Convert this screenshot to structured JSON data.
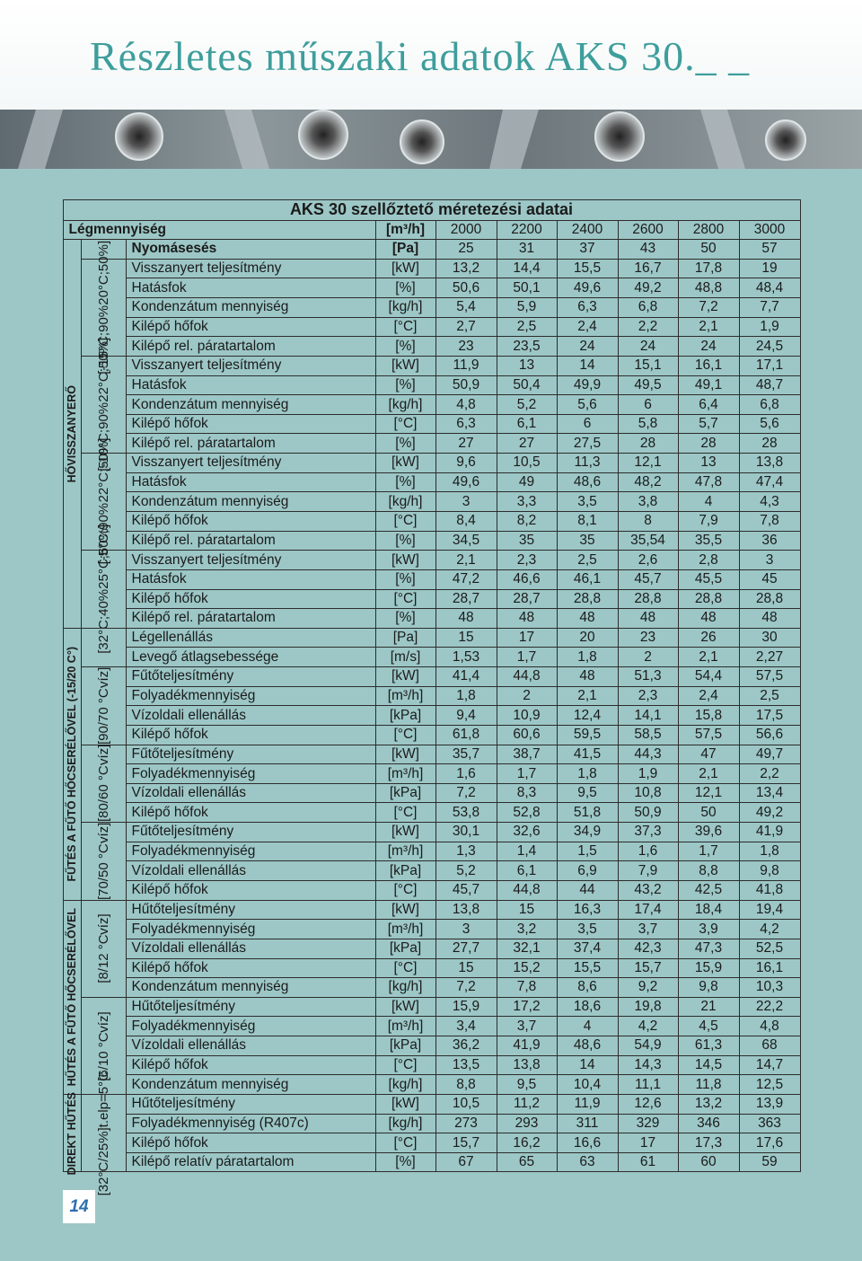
{
  "header": {
    "title": "Részletes műszaki adatok AKS 30._ _",
    "page_number": "14"
  },
  "table": {
    "title": "AKS 30 szellőztető méretezési adatai",
    "header_row": [
      "Légmennyiség",
      "[m³/h]",
      "2000",
      "2200",
      "2400",
      "2600",
      "2800",
      "3000"
    ],
    "groups": [
      {
        "label": "HŐVISSZANYERŐ",
        "subgroups": [
          {
            "bold": true,
            "rows": [
              [
                "Nyomásesés",
                "[Pa]",
                "25",
                "31",
                "37",
                "43",
                "50",
                "57"
              ]
            ]
          },
          {
            "label": [
              "[-15°C;90%",
              "20°C;50%]"
            ],
            "rows": [
              [
                "Visszanyert teljesítmény",
                "[kW]",
                "13,2",
                "14,4",
                "15,5",
                "16,7",
                "17,8",
                "19"
              ],
              [
                "Hatásfok",
                "[%]",
                "50,6",
                "50,1",
                "49,6",
                "49,2",
                "48,8",
                "48,4"
              ],
              [
                "Kondenzátum mennyiség",
                "[kg/h]",
                "5,4",
                "5,9",
                "6,3",
                "6,8",
                "7,2",
                "7,7"
              ],
              [
                "Kilépő hőfok",
                "[°C]",
                "2,7",
                "2,5",
                "2,4",
                "2,2",
                "2,1",
                "1,9"
              ],
              [
                "Kilépő rel. páratartalom",
                "[%]",
                "23",
                "23,5",
                "24",
                "24",
                "24",
                "24,5"
              ]
            ]
          },
          {
            "label": [
              "[-10°C;90%",
              "22°C;50%]"
            ],
            "rows": [
              [
                "Visszanyert teljesítmény",
                "[kW]",
                "11,9",
                "13",
                "14",
                "15,1",
                "16,1",
                "17,1"
              ],
              [
                "Hatásfok",
                "[%]",
                "50,9",
                "50,4",
                "49,9",
                "49,5",
                "49,1",
                "48,7"
              ],
              [
                "Kondenzátum mennyiség",
                "[kg/h]",
                "4,8",
                "5,2",
                "5,6",
                "6",
                "6,4",
                "6,8"
              ],
              [
                "Kilépő hőfok",
                "[°C]",
                "6,3",
                "6,1",
                "6",
                "5,8",
                "5,7",
                "5,6"
              ],
              [
                "Kilépő rel. páratartalom",
                "[%]",
                "27",
                "27",
                "27,5",
                "28",
                "28",
                "28"
              ]
            ]
          },
          {
            "label": [
              "[-5°C;90%",
              "22°C;50%]"
            ],
            "rows": [
              [
                "Visszanyert teljesítmény",
                "[kW]",
                "9,6",
                "10,5",
                "11,3",
                "12,1",
                "13",
                "13,8"
              ],
              [
                "Hatásfok",
                "[%]",
                "49,6",
                "49",
                "48,6",
                "48,2",
                "47,8",
                "47,4"
              ],
              [
                "Kondenzátum mennyiség",
                "[kg/h]",
                "3",
                "3,3",
                "3,5",
                "3,8",
                "4",
                "4,3"
              ],
              [
                "Kilépő hőfok",
                "[°C]",
                "8,4",
                "8,2",
                "8,1",
                "8",
                "7,9",
                "7,8"
              ],
              [
                "Kilépő rel. páratartalom",
                "[%]",
                "34,5",
                "35",
                "35",
                "35,54",
                "35,5",
                "36"
              ]
            ]
          },
          {
            "label": [
              "[32°C;40%",
              "25°C;60%]"
            ],
            "rows": [
              [
                "Visszanyert teljesítmény",
                "[kW]",
                "2,1",
                "2,3",
                "2,5",
                "2,6",
                "2,8",
                "3"
              ],
              [
                "Hatásfok",
                "[%]",
                "47,2",
                "46,6",
                "46,1",
                "45,7",
                "45,5",
                "45"
              ],
              [
                "Kilépő hőfok",
                "[°C]",
                "28,7",
                "28,7",
                "28,8",
                "28,8",
                "28,8",
                "28,8"
              ],
              [
                "Kilépő rel. páratartalom",
                "[%]",
                "48",
                "48",
                "48",
                "48",
                "48",
                "48"
              ]
            ]
          }
        ]
      },
      {
        "label": "FŰTÉS A FŰTŐ HŐCSERÉLŐVEL (-15/20 C°)",
        "subgroups": [
          {
            "rows": [
              [
                "Légellenállás",
                "[Pa]",
                "15",
                "17",
                "20",
                "23",
                "26",
                "30"
              ],
              [
                "Levegő átlagsebessége",
                "[m/s]",
                "1,53",
                "1,7",
                "1,8",
                "2",
                "2,1",
                "2,27"
              ]
            ]
          },
          {
            "label": [
              "[90/70 °C",
              "víz]"
            ],
            "rows": [
              [
                "Fűtőteljesítmény",
                "[kW]",
                "41,4",
                "44,8",
                "48",
                "51,3",
                "54,4",
                "57,5"
              ],
              [
                "Folyadékmennyiség",
                "[m³/h]",
                "1,8",
                "2",
                "2,1",
                "2,3",
                "2,4",
                "2,5"
              ],
              [
                "Vízoldali ellenállás",
                "[kPa]",
                "9,4",
                "10,9",
                "12,4",
                "14,1",
                "15,8",
                "17,5"
              ],
              [
                "Kilépő hőfok",
                "[°C]",
                "61,8",
                "60,6",
                "59,5",
                "58,5",
                "57,5",
                "56,6"
              ]
            ]
          },
          {
            "label": [
              "[80/60 °C",
              "víz]"
            ],
            "rows": [
              [
                "Fűtőteljesítmény",
                "[kW]",
                "35,7",
                "38,7",
                "41,5",
                "44,3",
                "47",
                "49,7"
              ],
              [
                "Folyadékmennyiség",
                "[m³/h]",
                "1,6",
                "1,7",
                "1,8",
                "1,9",
                "2,1",
                "2,2"
              ],
              [
                "Vízoldali ellenállás",
                "[kPa]",
                "7,2",
                "8,3",
                "9,5",
                "10,8",
                "12,1",
                "13,4"
              ],
              [
                "Kilépő hőfok",
                "[°C]",
                "53,8",
                "52,8",
                "51,8",
                "50,9",
                "50",
                "49,2"
              ]
            ]
          },
          {
            "label": [
              "[70/50 °C",
              "víz]"
            ],
            "rows": [
              [
                "Fűtőteljesítmény",
                "[kW]",
                "30,1",
                "32,6",
                "34,9",
                "37,3",
                "39,6",
                "41,9"
              ],
              [
                "Folyadékmennyiség",
                "[m³/h]",
                "1,3",
                "1,4",
                "1,5",
                "1,6",
                "1,7",
                "1,8"
              ],
              [
                "Vízoldali ellenállás",
                "[kPa]",
                "5,2",
                "6,1",
                "6,9",
                "7,9",
                "8,8",
                "9,8"
              ],
              [
                "Kilépő hőfok",
                "[°C]",
                "45,7",
                "44,8",
                "44",
                "43,2",
                "42,5",
                "41,8"
              ]
            ]
          }
        ]
      },
      {
        "label": "HŰTÉS A FŰTŐ HŐCSERÉLŐVEL",
        "subgroups": [
          {
            "label": [
              "[8/12 °C",
              "víz]"
            ],
            "rows": [
              [
                "Hűtőteljesítmény",
                "[kW]",
                "13,8",
                "15",
                "16,3",
                "17,4",
                "18,4",
                "19,4"
              ],
              [
                "Folyadékmennyiség",
                "[m³/h]",
                "3",
                "3,2",
                "3,5",
                "3,7",
                "3,9",
                "4,2"
              ],
              [
                "Vízoldali ellenállás",
                "[kPa]",
                "27,7",
                "32,1",
                "37,4",
                "42,3",
                "47,3",
                "52,5"
              ],
              [
                "Kilépő hőfok",
                "[°C]",
                "15",
                "15,2",
                "15,5",
                "15,7",
                "15,9",
                "16,1"
              ],
              [
                "Kondenzátum mennyiség",
                "[kg/h]",
                "7,2",
                "7,8",
                "8,6",
                "9,2",
                "9,8",
                "10,3"
              ]
            ]
          },
          {
            "label": [
              "[6/10 °C",
              "víz]"
            ],
            "rows": [
              [
                "Hűtőteljesítmény",
                "[kW]",
                "15,9",
                "17,2",
                "18,6",
                "19,8",
                "21",
                "22,2"
              ],
              [
                "Folyadékmennyiség",
                "[m³/h]",
                "3,4",
                "3,7",
                "4",
                "4,2",
                "4,5",
                "4,8"
              ],
              [
                "Vízoldali ellenállás",
                "[kPa]",
                "36,2",
                "41,9",
                "48,6",
                "54,9",
                "61,3",
                "68"
              ],
              [
                "Kilépő hőfok",
                "[°C]",
                "13,5",
                "13,8",
                "14",
                "14,3",
                "14,5",
                "14,7"
              ],
              [
                "Kondenzátum mennyiség",
                "[kg/h]",
                "8,8",
                "9,5",
                "10,4",
                "11,1",
                "11,8",
                "12,5"
              ]
            ]
          }
        ]
      },
      {
        "label": "DIREKT HŰTÉS",
        "subgroups": [
          {
            "label": [
              "[32°C/25%]",
              "t.elp=5°C"
            ],
            "rows": [
              [
                "Hűtőteljesítmény",
                "[kW]",
                "10,5",
                "11,2",
                "11,9",
                "12,6",
                "13,2",
                "13,9"
              ],
              [
                "Folyadékmennyiség (R407c)",
                "[kg/h]",
                "273",
                "293",
                "311",
                "329",
                "346",
                "363"
              ],
              [
                "Kilépő hőfok",
                "[°C]",
                "15,7",
                "16,2",
                "16,6",
                "17",
                "17,3",
                "17,6"
              ],
              [
                "Kilépő relatív páratartalom",
                "[%]",
                "67",
                "65",
                "63",
                "61",
                "60",
                "59"
              ]
            ]
          }
        ]
      }
    ]
  }
}
